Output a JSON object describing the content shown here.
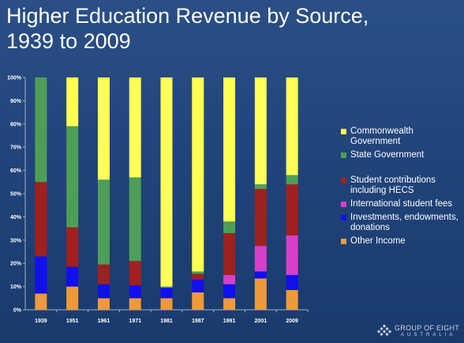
{
  "slide": {
    "title_line1": "Higher Education Revenue by Source,",
    "title_line2": "1939 to 2009"
  },
  "logo": {
    "text": "GROUP OF EIGHT",
    "subtext": "AUSTRALIA"
  },
  "colors": {
    "Commonwealth Government": "#ffff55",
    "State Government": "#4f9e58",
    "Student contributions including HECS": "#a02020",
    "International student fees": "#d83fc8",
    "Investments, endowments, donations": "#1010ee",
    "Other Income": "#ee9a3a"
  },
  "chart_data": {
    "type": "bar",
    "stacked": true,
    "categories": [
      "1939",
      "1951",
      "1961",
      "1971",
      "1981",
      "1987",
      "1991",
      "2001",
      "2009"
    ],
    "ylim": [
      0,
      100
    ],
    "yticks": [
      "0%",
      "10%",
      "20%",
      "30%",
      "40%",
      "50%",
      "60%",
      "70%",
      "80%",
      "90%",
      "100%"
    ],
    "grid": false,
    "legend_position": "right",
    "series": [
      {
        "name": "Other Income",
        "values": [
          7,
          10,
          5,
          5,
          5,
          7.5,
          5,
          13.5,
          8.5
        ]
      },
      {
        "name": "Investments, endowments, donations",
        "values": [
          16,
          8.5,
          6,
          5.5,
          4.5,
          5.5,
          6,
          3,
          6.5
        ]
      },
      {
        "name": "International student fees",
        "values": [
          0,
          0,
          0,
          0,
          0,
          0,
          4,
          11,
          17
        ]
      },
      {
        "name": "Student contributions including HECS",
        "values": [
          32,
          17,
          8.5,
          10.5,
          0,
          2.5,
          18,
          24.5,
          22
        ]
      },
      {
        "name": "State Government",
        "values": [
          45,
          43.5,
          36.5,
          36,
          0.5,
          1,
          5,
          2,
          4
        ]
      },
      {
        "name": "Commonwealth Government",
        "values": [
          0,
          21,
          44,
          43,
          90,
          83.5,
          62,
          46,
          42
        ]
      }
    ]
  },
  "legend": [
    {
      "label": "Commonwealth Government",
      "color": "#ffff55"
    },
    {
      "label": "State Government",
      "color": "#4f9e58"
    },
    {
      "label": "Student contributions including HECS",
      "color": "#a02020"
    },
    {
      "label": "International student fees",
      "color": "#d83fc8"
    },
    {
      "label": "Investments, endowments, donations",
      "color": "#1010ee"
    },
    {
      "label": "Other Income",
      "color": "#ee9a3a"
    }
  ]
}
